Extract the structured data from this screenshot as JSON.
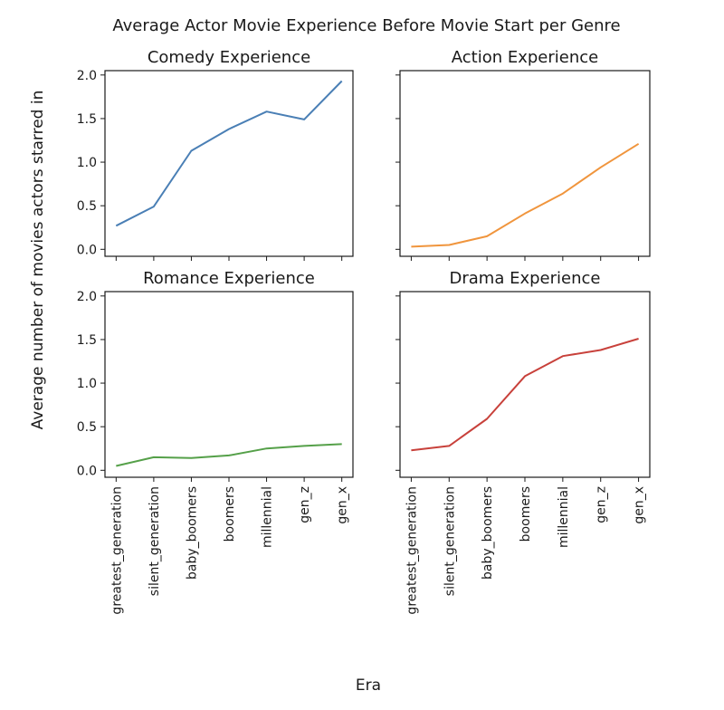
{
  "figure": {
    "title": "Average Actor Movie Experience Before Movie Start per Genre",
    "xlabel": "Era",
    "ylabel": "Average number of movies actors starred in"
  },
  "chart_data": [
    {
      "type": "line",
      "title": "Comedy Experience",
      "categories": [
        "greatest_generation",
        "silent_generation",
        "baby_boomers",
        "boomers",
        "millennial",
        "gen_z",
        "gen_x"
      ],
      "series": [
        {
          "values": [
            0.27,
            0.49,
            1.13,
            1.38,
            1.58,
            1.49,
            1.93
          ]
        }
      ],
      "ylim": [
        -0.08,
        2.05
      ],
      "yticks": [
        "0.0",
        "0.5",
        "1.0",
        "1.5",
        "2.0"
      ],
      "color": "#4a7fb5",
      "grid": false
    },
    {
      "type": "line",
      "title": "Action Experience",
      "categories": [
        "greatest_generation",
        "silent_generation",
        "baby_boomers",
        "boomers",
        "millennial",
        "gen_z",
        "gen_x"
      ],
      "series": [
        {
          "values": [
            0.03,
            0.05,
            0.15,
            0.41,
            0.64,
            0.94,
            1.21
          ]
        }
      ],
      "ylim": [
        -0.08,
        2.05
      ],
      "yticks": [
        "0.0",
        "0.5",
        "1.0",
        "1.5",
        "2.0"
      ],
      "color": "#f0953d",
      "grid": false
    },
    {
      "type": "line",
      "title": "Romance Experience",
      "categories": [
        "greatest_generation",
        "silent_generation",
        "baby_boomers",
        "boomers",
        "millennial",
        "gen_z",
        "gen_x"
      ],
      "series": [
        {
          "values": [
            0.05,
            0.15,
            0.14,
            0.17,
            0.25,
            0.28,
            0.3
          ]
        }
      ],
      "ylim": [
        -0.08,
        2.05
      ],
      "yticks": [
        "0.0",
        "0.5",
        "1.0",
        "1.5",
        "2.0"
      ],
      "color": "#55a049",
      "grid": false
    },
    {
      "type": "line",
      "title": "Drama Experience",
      "categories": [
        "greatest_generation",
        "silent_generation",
        "baby_boomers",
        "boomers",
        "millennial",
        "gen_z",
        "gen_x"
      ],
      "series": [
        {
          "values": [
            0.23,
            0.28,
            0.59,
            1.08,
            1.31,
            1.38,
            1.51
          ]
        }
      ],
      "ylim": [
        -0.08,
        2.05
      ],
      "yticks": [
        "0.0",
        "0.5",
        "1.0",
        "1.5",
        "2.0"
      ],
      "color": "#c8413b",
      "grid": false
    }
  ]
}
